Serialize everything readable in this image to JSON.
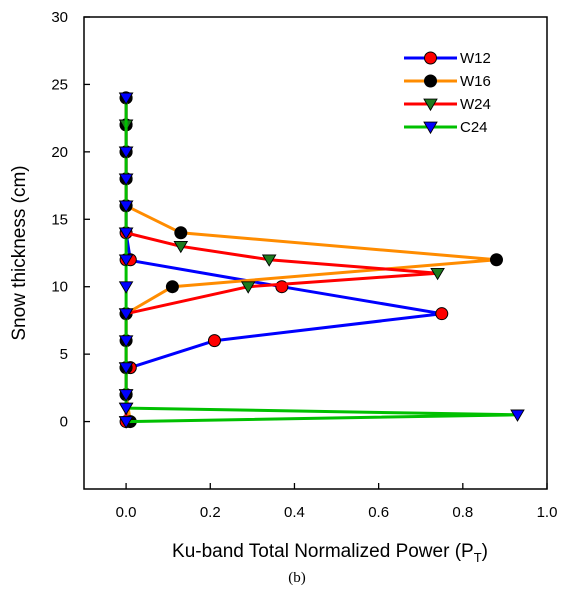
{
  "chart_data": {
    "type": "line",
    "title": "",
    "xlabel": "Ku-band Total Normalized Power (P",
    "xlabel_sub": "T",
    "xlabel_end": ")",
    "ylabel": "Snow thickness (cm)",
    "caption": "(b)",
    "xlim": [
      -0.1,
      1.0
    ],
    "ylim": [
      -5,
      30
    ],
    "xticks": [
      "0.0",
      "0.2",
      "0.4",
      "0.6",
      "0.8",
      "1.0"
    ],
    "xtick_values": [
      0,
      0.2,
      0.4,
      0.6,
      0.8,
      1.0
    ],
    "yticks": [
      "0",
      "5",
      "10",
      "15",
      "20",
      "25",
      "30"
    ],
    "ytick_values": [
      0,
      5,
      10,
      15,
      20,
      25,
      30
    ],
    "grid": false,
    "legend": "top-right",
    "series": [
      {
        "name": "W12",
        "color": "#0000ff",
        "marker": "circle",
        "marker_color": "#ff0000",
        "x": [
          0,
          0,
          0,
          0.01,
          0.21,
          0.75,
          0.37,
          0,
          0.01,
          0,
          0,
          0,
          0,
          0,
          0
        ],
        "y": [
          0,
          2,
          4,
          4,
          6,
          8,
          10,
          12,
          12,
          14,
          16,
          18,
          20,
          22,
          24
        ]
      },
      {
        "name": "W16",
        "color": "#ff8c00",
        "marker": "circle",
        "marker_color": "#000000",
        "x": [
          0.01,
          0,
          0,
          0,
          0,
          0,
          0.11,
          0.88,
          0.13,
          0,
          0,
          0,
          0,
          0
        ],
        "y": [
          0,
          2,
          4,
          6,
          8,
          8,
          10,
          12,
          14,
          16,
          18,
          20,
          22,
          24
        ]
      },
      {
        "name": "W24",
        "color": "#ff0000",
        "marker": "triangle-down",
        "marker_color": "#1e7b1e",
        "x": [
          0,
          0,
          0,
          0,
          0,
          0.29,
          0.74,
          0.34,
          0.13,
          0,
          0,
          0,
          0,
          0,
          0
        ],
        "y": [
          0,
          1,
          2,
          4,
          8,
          10,
          11,
          12,
          13,
          14,
          16,
          18,
          20,
          22,
          24
        ]
      },
      {
        "name": "C24",
        "color": "#00c000",
        "marker": "triangle-down",
        "marker_color": "#0000ff",
        "x": [
          0,
          0.93,
          0,
          0,
          0,
          0,
          0,
          0,
          0,
          0,
          0,
          0,
          0,
          0
        ],
        "y": [
          0,
          0.5,
          1,
          2,
          4,
          6,
          8,
          10,
          12,
          14,
          16,
          18,
          20,
          24
        ]
      }
    ]
  }
}
